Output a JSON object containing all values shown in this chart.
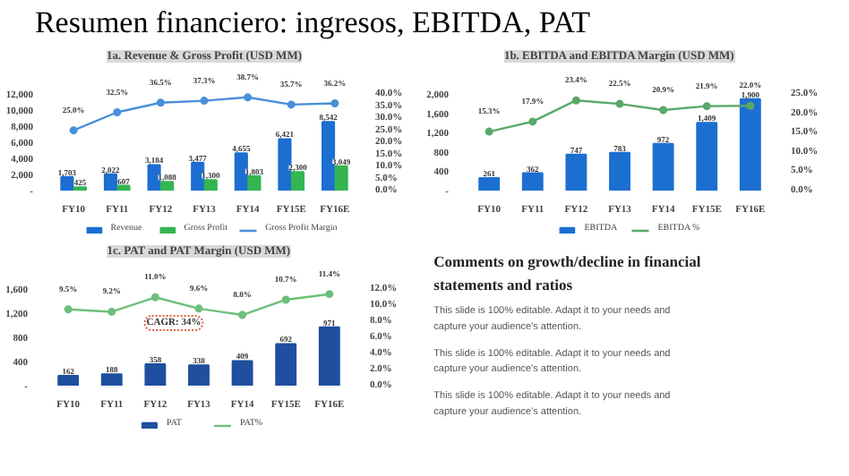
{
  "chart_data": [
    {
      "type": "bar",
      "title": "Resumen financiero: ingresos, EBITDA, PAT",
      "subtitle": "1a. Revenue & Gross Profit (USD MM)",
      "categories": [
        "FY10",
        "FY11",
        "FY12",
        "FY13",
        "FY14",
        "FY15E",
        "FY16E"
      ],
      "series": [
        {
          "name": "Revenue",
          "type": "bar",
          "color": "#1c6fd1",
          "values": [
            1703,
            2022,
            3184,
            3477,
            4655,
            6421,
            8542
          ],
          "value_labels": [
            "1,703",
            "2,022",
            "3,184",
            "3,477",
            "4,655",
            "6,421",
            "8,542"
          ]
        },
        {
          "name": "Gross Profit",
          "type": "bar",
          "color": "#33b551",
          "values": [
            425,
            607,
            1088,
            1300,
            1803,
            2300,
            3049
          ],
          "value_labels": [
            "425",
            "607",
            "1,088",
            "1,300",
            "1,803",
            "2,300",
            "3,049"
          ]
        },
        {
          "name": "Gross Profit Margin",
          "type": "line",
          "axis": "y2",
          "color": "#4a8fd8",
          "values": [
            25.0,
            32.5,
            36.5,
            37.3,
            38.7,
            35.7,
            36.2
          ],
          "value_labels": [
            "25.0%",
            "32.5%",
            "36.5%",
            "37.3%",
            "38.7%",
            "35.7%",
            "36.2%"
          ]
        }
      ],
      "ylim": [
        0,
        12000
      ],
      "yticks": [
        {
          "value": 0,
          "label": "-"
        },
        {
          "value": 2000,
          "label": "2,000"
        },
        {
          "value": 4000,
          "label": "4,000"
        },
        {
          "value": 6000,
          "label": "6,000"
        },
        {
          "value": 8000,
          "label": "8,000"
        },
        {
          "value": 10000,
          "label": "10,000"
        },
        {
          "value": 12000,
          "label": "12,000"
        }
      ],
      "y2lim": [
        0,
        40
      ],
      "y2ticks": [
        {
          "value": 0,
          "label": "0.0%"
        },
        {
          "value": 5,
          "label": "5.0%"
        },
        {
          "value": 10,
          "label": "10.0%"
        },
        {
          "value": 15,
          "label": "15.0%"
        },
        {
          "value": 20,
          "label": "20.0%"
        },
        {
          "value": 25,
          "label": "25.0%"
        },
        {
          "value": 30,
          "label": "30.0%"
        },
        {
          "value": 35,
          "label": "35.0%"
        },
        {
          "value": 40,
          "label": "40.0%"
        }
      ],
      "marker": "circle",
      "legend": "bottom",
      "grid": false
    },
    {
      "type": "bar",
      "title": "1b. EBITDA and EBITDA Margin (USD MM)",
      "categories": [
        "FY10",
        "FY11",
        "FY12",
        "FY13",
        "FY14",
        "FY15E",
        "FY16E"
      ],
      "series": [
        {
          "name": "EBITDA",
          "type": "bar",
          "color": "#1c6fd1",
          "values": [
            261,
            362,
            747,
            783,
            972,
            1409,
            1900
          ],
          "value_labels": [
            "261",
            "362",
            "747",
            "783",
            "972",
            "1,409",
            "1,900"
          ]
        },
        {
          "name": "EBITDA %",
          "type": "line",
          "axis": "y2",
          "color": "#5aa86a",
          "values": [
            15.3,
            17.9,
            23.4,
            22.5,
            20.9,
            21.9,
            22.0
          ],
          "value_labels": [
            "15.3%",
            "17.9%",
            "23.4%",
            "22.5%",
            "20.9%",
            "21.9%",
            "22.0%"
          ]
        }
      ],
      "ylim": [
        0,
        2000
      ],
      "yticks": [
        {
          "value": 0,
          "label": "-"
        },
        {
          "value": 400,
          "label": "400"
        },
        {
          "value": 800,
          "label": "800"
        },
        {
          "value": 1200,
          "label": "1,200"
        },
        {
          "value": 1600,
          "label": "1,600"
        },
        {
          "value": 2000,
          "label": "2,000"
        }
      ],
      "y2lim": [
        0,
        25
      ],
      "y2ticks": [
        {
          "value": 0,
          "label": "0.0%"
        },
        {
          "value": 5,
          "label": "5.0%"
        },
        {
          "value": 10,
          "label": "10.0%"
        },
        {
          "value": 15,
          "label": "15.0%"
        },
        {
          "value": 20,
          "label": "20.0%"
        },
        {
          "value": 25,
          "label": "25.0%"
        }
      ],
      "marker": "circle",
      "legend": "bottom",
      "grid": false
    },
    {
      "type": "bar",
      "title": "1c. PAT and PAT Margin (USD MM)",
      "categories": [
        "FY10",
        "FY11",
        "FY12",
        "FY13",
        "FY14",
        "FY15E",
        "FY16E"
      ],
      "series": [
        {
          "name": "PAT",
          "type": "bar",
          "color": "#1f4f9e",
          "values": [
            162,
            188,
            358,
            338,
            409,
            692,
            971
          ],
          "value_labels": [
            "162",
            "188",
            "358",
            "338",
            "409",
            "692",
            "971"
          ]
        },
        {
          "name": "PAT%",
          "type": "line",
          "axis": "y2",
          "color": "#6cbf7a",
          "values": [
            9.5,
            9.2,
            11.0,
            9.6,
            8.8,
            10.7,
            11.4
          ],
          "value_labels": [
            "9.5%",
            "9.2%",
            "11.0%",
            "9.6%",
            "8.8%",
            "10.7%",
            "11.4%"
          ]
        }
      ],
      "ylim": [
        0,
        1600
      ],
      "yticks": [
        {
          "value": 0,
          "label": "-"
        },
        {
          "value": 400,
          "label": "400"
        },
        {
          "value": 800,
          "label": "800"
        },
        {
          "value": 1200,
          "label": "1,200"
        },
        {
          "value": 1600,
          "label": "1,600"
        }
      ],
      "y2lim": [
        0,
        12
      ],
      "y2ticks": [
        {
          "value": 0,
          "label": "0.0%"
        },
        {
          "value": 2,
          "label": "2.0%"
        },
        {
          "value": 4,
          "label": "4.0%"
        },
        {
          "value": 6,
          "label": "6.0%"
        },
        {
          "value": 8,
          "label": "8.0%"
        },
        {
          "value": 10,
          "label": "10.0%"
        },
        {
          "value": 12,
          "label": "12.0%"
        }
      ],
      "annotations": [
        "CAGR: 34%"
      ],
      "marker": "circle",
      "legend": "bottom",
      "grid": false
    },
    {
      "type": "other",
      "title": "Comments on growth/decline in financial statements and ratios",
      "annotations": [
        "This slide is 100% editable. Adapt it to your needs and capture your audience's attention.",
        "This slide is 100% editable. Adapt it to your needs and capture your audience's attention.",
        "This slide is 100% editable. Adapt it to your needs and capture your audience's attention."
      ]
    }
  ]
}
